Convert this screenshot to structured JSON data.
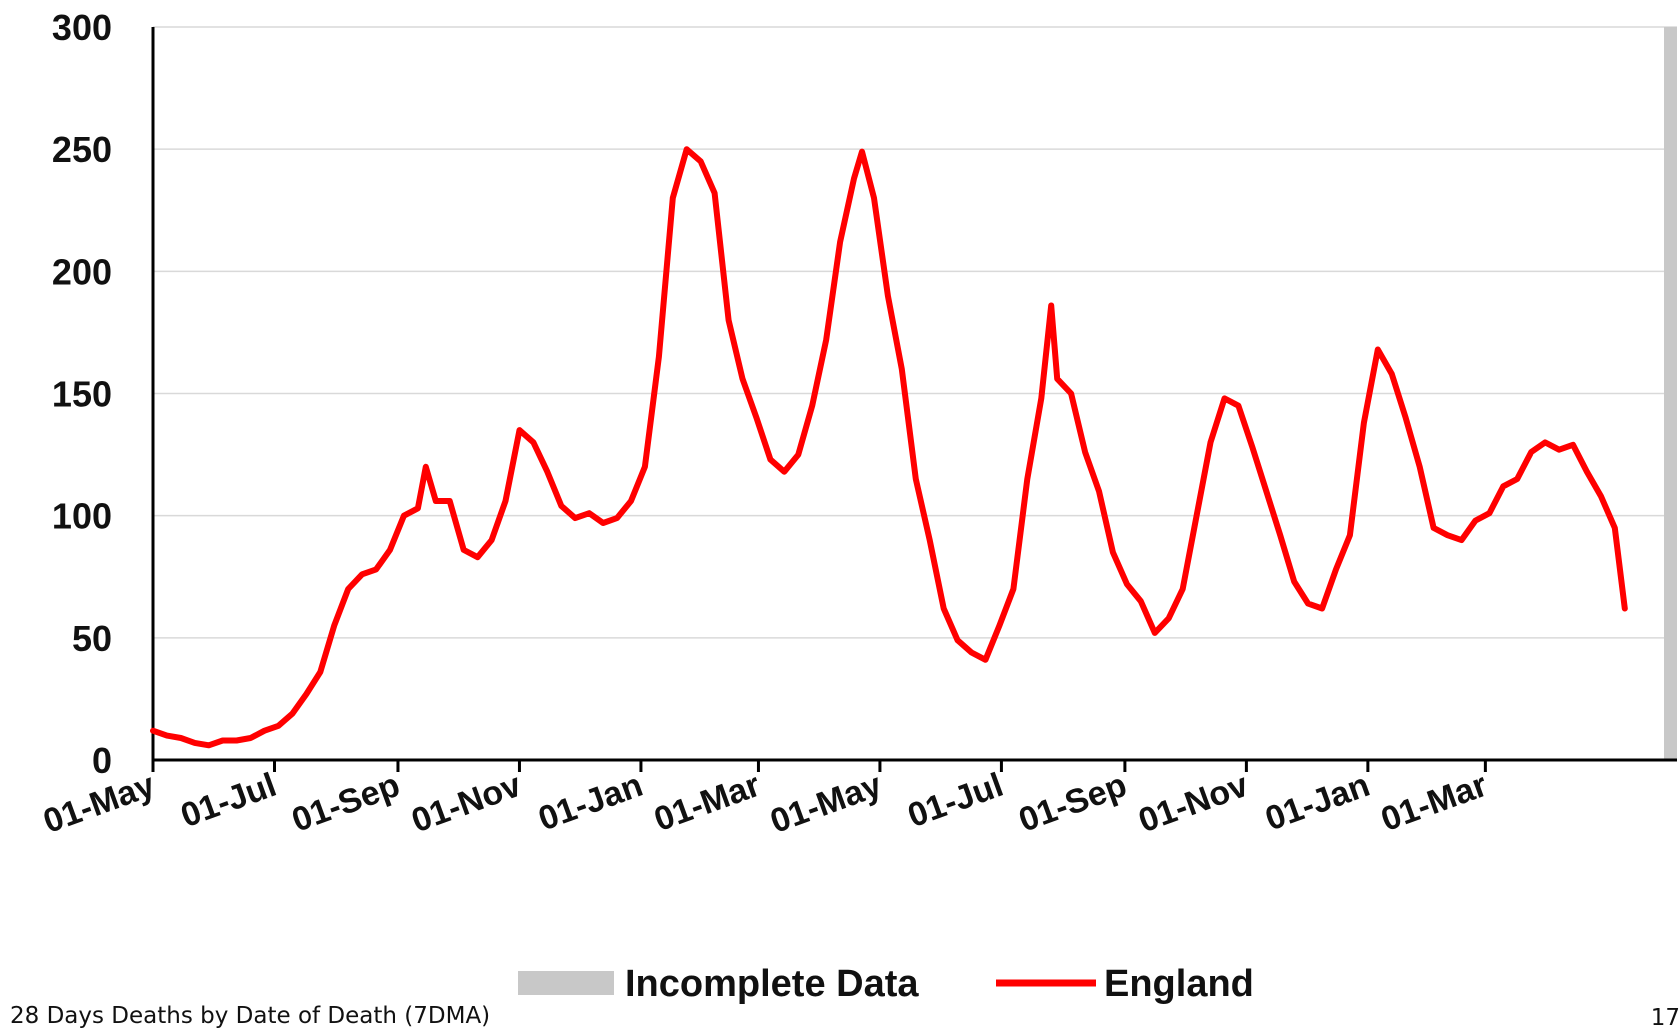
{
  "chart_data": {
    "type": "line",
    "x_tick_labels": [
      "01-May",
      "01-Jul",
      "01-Sep",
      "01-Nov",
      "01-Jan",
      "01-Mar",
      "01-May",
      "01-Jul",
      "01-Sep",
      "01-Nov",
      "01-Jan",
      "01-Mar"
    ],
    "x_axis_month_range": [
      "2020-05-01",
      "2022-04-15"
    ],
    "ylim": [
      0,
      300
    ],
    "yticks": [
      0,
      50,
      100,
      150,
      200,
      250,
      300
    ],
    "grid": "horizontal",
    "legend_placement": "bottom",
    "series": [
      {
        "name": "England",
        "color": "#ff0000",
        "points": [
          [
            "2020-05-01",
            12
          ],
          [
            "2020-05-08",
            10
          ],
          [
            "2020-05-15",
            9
          ],
          [
            "2020-05-22",
            7
          ],
          [
            "2020-05-29",
            6
          ],
          [
            "2020-06-05",
            8
          ],
          [
            "2020-06-12",
            8
          ],
          [
            "2020-06-19",
            9
          ],
          [
            "2020-06-26",
            12
          ],
          [
            "2020-07-03",
            14
          ],
          [
            "2020-07-10",
            19
          ],
          [
            "2020-07-17",
            27
          ],
          [
            "2020-07-24",
            36
          ],
          [
            "2020-07-31",
            55
          ],
          [
            "2020-08-07",
            70
          ],
          [
            "2020-08-14",
            76
          ],
          [
            "2020-08-21",
            78
          ],
          [
            "2020-08-28",
            86
          ],
          [
            "2020-09-04",
            100
          ],
          [
            "2020-09-11",
            103
          ],
          [
            "2020-09-15",
            120
          ],
          [
            "2020-09-20",
            106
          ],
          [
            "2020-09-27",
            106
          ],
          [
            "2020-10-04",
            86
          ],
          [
            "2020-10-11",
            83
          ],
          [
            "2020-10-18",
            90
          ],
          [
            "2020-10-25",
            106
          ],
          [
            "2020-11-01",
            135
          ],
          [
            "2020-11-08",
            130
          ],
          [
            "2020-11-15",
            118
          ],
          [
            "2020-11-22",
            104
          ],
          [
            "2020-11-29",
            99
          ],
          [
            "2020-12-06",
            101
          ],
          [
            "2020-12-13",
            97
          ],
          [
            "2020-12-20",
            99
          ],
          [
            "2020-12-27",
            106
          ],
          [
            "2021-01-03",
            120
          ],
          [
            "2021-01-10",
            165
          ],
          [
            "2021-01-17",
            230
          ],
          [
            "2021-01-24",
            250
          ],
          [
            "2021-01-31",
            245
          ],
          [
            "2021-02-07",
            232
          ],
          [
            "2021-02-14",
            180
          ],
          [
            "2021-02-21",
            156
          ],
          [
            "2021-02-28",
            140
          ],
          [
            "2021-03-07",
            123
          ],
          [
            "2021-03-14",
            118
          ],
          [
            "2021-03-21",
            125
          ],
          [
            "2021-03-28",
            145
          ],
          [
            "2021-04-04",
            172
          ],
          [
            "2021-04-11",
            212
          ],
          [
            "2021-04-18",
            238
          ],
          [
            "2021-04-22",
            249
          ],
          [
            "2021-04-28",
            230
          ],
          [
            "2021-05-05",
            190
          ],
          [
            "2021-05-12",
            160
          ],
          [
            "2021-05-19",
            115
          ],
          [
            "2021-05-26",
            90
          ],
          [
            "2021-06-02",
            62
          ],
          [
            "2021-06-09",
            49
          ],
          [
            "2021-06-16",
            44
          ],
          [
            "2021-06-23",
            41
          ],
          [
            "2021-06-30",
            55
          ],
          [
            "2021-07-07",
            70
          ],
          [
            "2021-07-14",
            115
          ],
          [
            "2021-07-21",
            148
          ],
          [
            "2021-07-26",
            186
          ],
          [
            "2021-07-29",
            156
          ],
          [
            "2021-08-05",
            150
          ],
          [
            "2021-08-12",
            126
          ],
          [
            "2021-08-19",
            110
          ],
          [
            "2021-08-26",
            85
          ],
          [
            "2021-09-02",
            72
          ],
          [
            "2021-09-09",
            65
          ],
          [
            "2021-09-16",
            52
          ],
          [
            "2021-09-23",
            58
          ],
          [
            "2021-09-30",
            70
          ],
          [
            "2021-10-07",
            100
          ],
          [
            "2021-10-14",
            130
          ],
          [
            "2021-10-21",
            148
          ],
          [
            "2021-10-28",
            145
          ],
          [
            "2021-11-04",
            128
          ],
          [
            "2021-11-11",
            110
          ],
          [
            "2021-11-18",
            92
          ],
          [
            "2021-11-25",
            73
          ],
          [
            "2021-12-02",
            64
          ],
          [
            "2021-12-09",
            62
          ],
          [
            "2021-12-16",
            78
          ],
          [
            "2021-12-23",
            92
          ],
          [
            "2021-12-30",
            138
          ],
          [
            "2022-01-06",
            168
          ],
          [
            "2022-01-13",
            158
          ],
          [
            "2022-01-20",
            140
          ],
          [
            "2022-01-27",
            120
          ],
          [
            "2022-02-03",
            95
          ],
          [
            "2022-02-10",
            92
          ],
          [
            "2022-02-17",
            90
          ],
          [
            "2022-02-24",
            98
          ],
          [
            "2022-03-03",
            101
          ],
          [
            "2022-03-10",
            112
          ],
          [
            "2022-03-17",
            115
          ],
          [
            "2022-03-24",
            126
          ],
          [
            "2022-03-31",
            130
          ],
          [
            "2022-04-07",
            127
          ],
          [
            "2022-04-14",
            129
          ],
          [
            "2022-04-21",
            118
          ],
          [
            "2022-04-28",
            108
          ],
          [
            "2022-05-05",
            95
          ],
          [
            "2022-05-10",
            62
          ]
        ]
      }
    ],
    "incomplete_data_band": {
      "name": "Incomplete Data",
      "color": "#c8c8c8",
      "range": [
        "2022-05-09",
        "2022-05-10"
      ]
    }
  },
  "legend": {
    "incomplete_label": "Incomplete Data",
    "england_label": "England"
  },
  "footnote": "28 Days Deaths by Date of Death (7DMA)",
  "page_number": "17"
}
